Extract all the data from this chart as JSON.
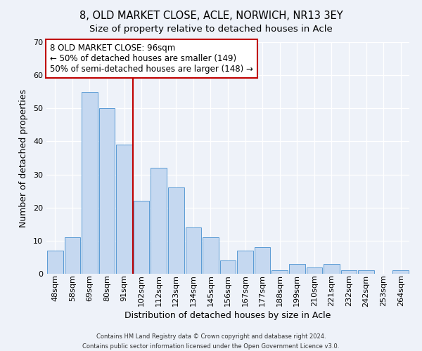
{
  "title": "8, OLD MARKET CLOSE, ACLE, NORWICH, NR13 3EY",
  "subtitle": "Size of property relative to detached houses in Acle",
  "xlabel": "Distribution of detached houses by size in Acle",
  "ylabel": "Number of detached properties",
  "bar_labels": [
    "48sqm",
    "58sqm",
    "69sqm",
    "80sqm",
    "91sqm",
    "102sqm",
    "112sqm",
    "123sqm",
    "134sqm",
    "145sqm",
    "156sqm",
    "167sqm",
    "177sqm",
    "188sqm",
    "199sqm",
    "210sqm",
    "221sqm",
    "232sqm",
    "242sqm",
    "253sqm",
    "264sqm"
  ],
  "bar_values": [
    7,
    11,
    55,
    50,
    39,
    22,
    32,
    26,
    14,
    11,
    4,
    7,
    8,
    1,
    3,
    2,
    3,
    1,
    1,
    0,
    1
  ],
  "bar_color": "#c5d8f0",
  "bar_edge_color": "#5b9bd5",
  "vline_x_index": 4,
  "vline_color": "#c00000",
  "annotation_line1": "8 OLD MARKET CLOSE: 96sqm",
  "annotation_line2": "← 50% of detached houses are smaller (149)",
  "annotation_line3": "50% of semi-detached houses are larger (148) →",
  "annotation_box_color": "#ffffff",
  "annotation_box_edge": "#c00000",
  "ylim": [
    0,
    70
  ],
  "yticks": [
    0,
    10,
    20,
    30,
    40,
    50,
    60,
    70
  ],
  "footer_line1": "Contains HM Land Registry data © Crown copyright and database right 2024.",
  "footer_line2": "Contains public sector information licensed under the Open Government Licence v3.0.",
  "bg_color": "#eef2f9",
  "grid_color": "#ffffff",
  "title_fontsize": 10.5,
  "subtitle_fontsize": 9.5,
  "xlabel_fontsize": 9,
  "ylabel_fontsize": 9,
  "tick_fontsize": 8,
  "annot_fontsize": 8.5,
  "footer_fontsize": 6
}
